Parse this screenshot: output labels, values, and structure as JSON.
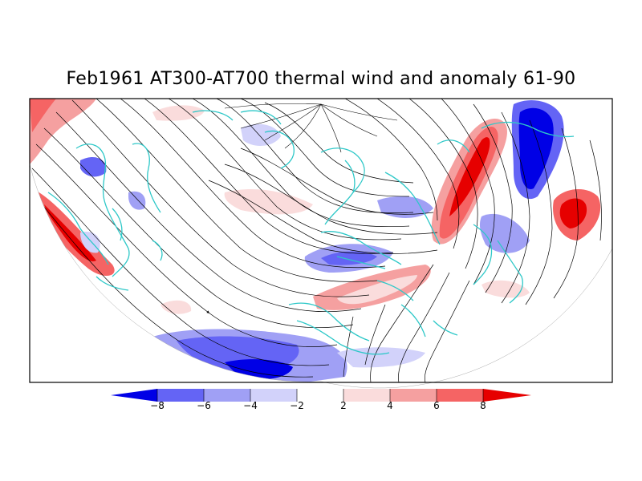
{
  "title": "Feb1961 AT300-AT700 thermal wind and anomaly 61-90",
  "colorbar": {
    "labels": [
      "−8",
      "−6",
      "−4",
      "−2",
      "2",
      "4",
      "6",
      "8"
    ],
    "colors": [
      "#0000e6",
      "#6464f5",
      "#a0a0f5",
      "#d2d2fa",
      "#ffffff",
      "#fadcdc",
      "#f5a0a0",
      "#f56464",
      "#e60000"
    ]
  },
  "colors": {
    "coastline": "#2ec8c8",
    "streamline": "#000000",
    "frame": "#000000"
  }
}
